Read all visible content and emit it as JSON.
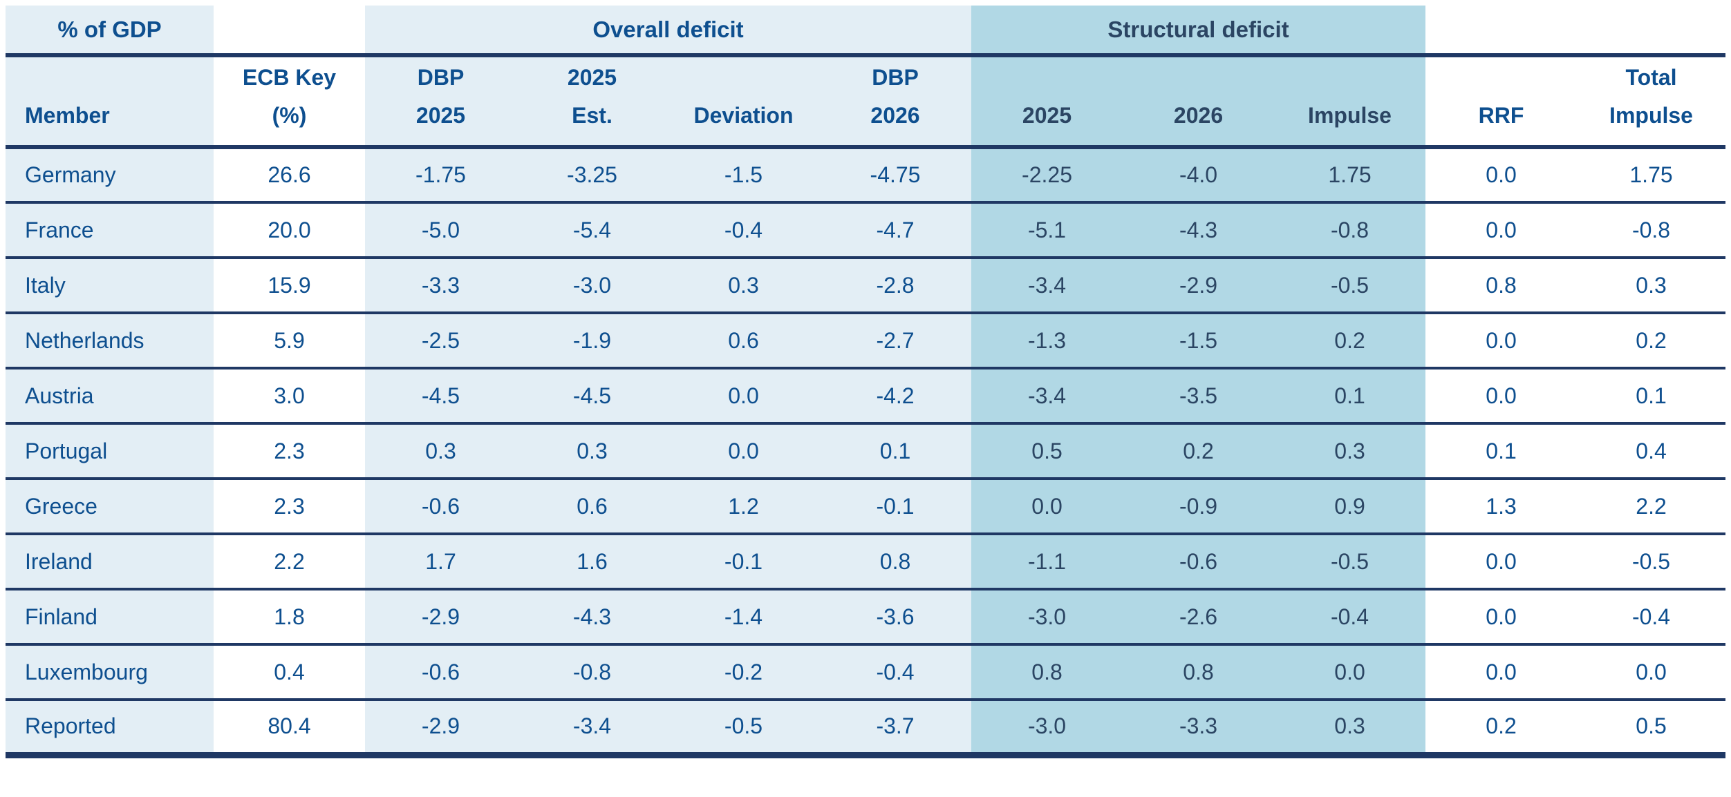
{
  "colors": {
    "light_blue": "#e3eef5",
    "medium_blue": "#b1d8e5",
    "text_blue": "#0e4f8f",
    "text_navy": "#2b4563",
    "border_navy": "#1f3864",
    "page_bg": "#ffffff"
  },
  "table": {
    "corner_label": "% of GDP",
    "group_overall": "Overall deficit",
    "group_structural": "Structural deficit",
    "headers": [
      {
        "lines": [
          "Member"
        ]
      },
      {
        "lines": [
          "ECB Key",
          "(%)"
        ]
      },
      {
        "lines": [
          "DBP",
          "2025"
        ]
      },
      {
        "lines": [
          "2025",
          "Est."
        ]
      },
      {
        "lines": [
          "Deviation"
        ]
      },
      {
        "lines": [
          "DBP",
          "2026"
        ]
      },
      {
        "lines": [
          "2025"
        ]
      },
      {
        "lines": [
          "2026"
        ]
      },
      {
        "lines": [
          "Impulse"
        ]
      },
      {
        "lines": [
          "RRF"
        ]
      },
      {
        "lines": [
          "Total",
          "Impulse"
        ]
      }
    ]
  },
  "chart_data": {
    "type": "table",
    "title": "% of GDP",
    "column_groups": [
      {
        "label": "",
        "span": 2
      },
      {
        "label": "Overall deficit",
        "span": 4
      },
      {
        "label": "Structural deficit",
        "span": 3
      },
      {
        "label": "",
        "span": 2
      }
    ],
    "columns": [
      "Member",
      "ECB Key (%)",
      "DBP 2025",
      "2025 Est.",
      "Deviation",
      "DBP 2026",
      "2025",
      "2026",
      "Impulse",
      "RRF",
      "Total Impulse"
    ],
    "rows": [
      [
        "Germany",
        "26.6",
        "-1.75",
        "-3.25",
        "-1.5",
        "-4.75",
        "-2.25",
        "-4.0",
        "1.75",
        "0.0",
        "1.75"
      ],
      [
        "France",
        "20.0",
        "-5.0",
        "-5.4",
        "-0.4",
        "-4.7",
        "-5.1",
        "-4.3",
        "-0.8",
        "0.0",
        "-0.8"
      ],
      [
        "Italy",
        "15.9",
        "-3.3",
        "-3.0",
        "0.3",
        "-2.8",
        "-3.4",
        "-2.9",
        "-0.5",
        "0.8",
        "0.3"
      ],
      [
        "Netherlands",
        "5.9",
        "-2.5",
        "-1.9",
        "0.6",
        "-2.7",
        "-1.3",
        "-1.5",
        "0.2",
        "0.0",
        "0.2"
      ],
      [
        "Austria",
        "3.0",
        "-4.5",
        "-4.5",
        "0.0",
        "-4.2",
        "-3.4",
        "-3.5",
        "0.1",
        "0.0",
        "0.1"
      ],
      [
        "Portugal",
        "2.3",
        "0.3",
        "0.3",
        "0.0",
        "0.1",
        "0.5",
        "0.2",
        "0.3",
        "0.1",
        "0.4"
      ],
      [
        "Greece",
        "2.3",
        "-0.6",
        "0.6",
        "1.2",
        "-0.1",
        "0.0",
        "-0.9",
        "0.9",
        "1.3",
        "2.2"
      ],
      [
        "Ireland",
        "2.2",
        "1.7",
        "1.6",
        "-0.1",
        "0.8",
        "-1.1",
        "-0.6",
        "-0.5",
        "0.0",
        "-0.5"
      ],
      [
        "Finland",
        "1.8",
        "-2.9",
        "-4.3",
        "-1.4",
        "-3.6",
        "-3.0",
        "-2.6",
        "-0.4",
        "0.0",
        "-0.4"
      ],
      [
        "Luxembourg",
        "0.4",
        "-0.6",
        "-0.8",
        "-0.2",
        "-0.4",
        "0.8",
        "0.8",
        "0.0",
        "0.0",
        "0.0"
      ],
      [
        "Reported",
        "80.4",
        "-2.9",
        "-3.4",
        "-0.5",
        "-3.7",
        "-3.0",
        "-3.3",
        "0.3",
        "0.2",
        "0.5"
      ]
    ]
  }
}
